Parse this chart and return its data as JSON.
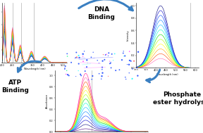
{
  "bg_color": "#ffffff",
  "center_image_color": "#000510",
  "arrow_color": "#3a7fc1",
  "dna_binding_label": "DNA\nBinding",
  "atp_binding_label": "ATP\nBinding",
  "phosphate_label": "Phosphate\nester hydrolysis",
  "top_left_chart": {
    "n_curves": 12,
    "colors": [
      "#000080",
      "#0000cd",
      "#0040ff",
      "#0080ff",
      "#00c0ff",
      "#00ffcc",
      "#00dd00",
      "#aaff00",
      "#ffff00",
      "#ffaa00",
      "#ff4400",
      "#ff69b4"
    ]
  },
  "top_right_chart": {
    "n_curves": 12,
    "colors": [
      "#000080",
      "#0000cd",
      "#0040ff",
      "#0080ff",
      "#00c0ff",
      "#00ffcc",
      "#00dd00",
      "#aaff00",
      "#ffff00",
      "#ffaa00",
      "#ff4400",
      "#ff69b4"
    ]
  },
  "bottom_chart": {
    "n_curves": 14,
    "colors": [
      "#4b0082",
      "#000080",
      "#0000cd",
      "#0040ff",
      "#0080ff",
      "#00c0ff",
      "#00ffcc",
      "#00dd00",
      "#aaff00",
      "#ffff00",
      "#ffaa00",
      "#ff4400",
      "#ff69b4",
      "#ff1493"
    ]
  },
  "font_size_label": 6.5,
  "font_weight": "bold"
}
